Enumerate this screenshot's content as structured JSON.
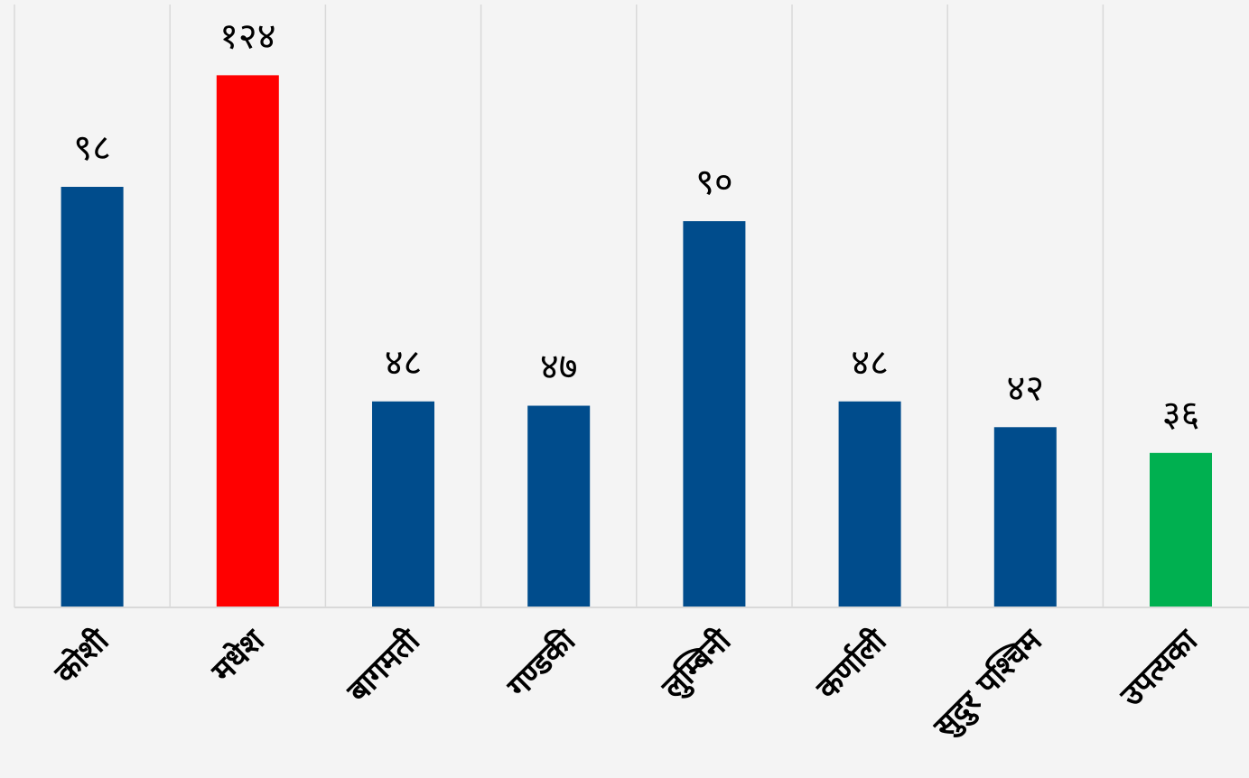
{
  "chart_data": {
    "type": "bar",
    "categories": [
      "कोशी",
      "मधेश",
      "बागमती",
      "गण्डकी",
      "लुम्बिनी",
      "कर्णाली",
      "सुदुर पश्चिम",
      "उपत्यका"
    ],
    "values": [
      98,
      124,
      48,
      47,
      90,
      48,
      42,
      36
    ],
    "value_labels": [
      "९८",
      "१२४",
      "४८",
      "४७",
      "९०",
      "४८",
      "४२",
      "३६"
    ],
    "bar_colors": [
      "#004c8c",
      "#ff0000",
      "#004c8c",
      "#004c8c",
      "#004c8c",
      "#004c8c",
      "#004c8c",
      "#00b050"
    ],
    "title": "",
    "xlabel": "",
    "ylabel": "",
    "ylim": [
      0,
      140
    ],
    "grid": true,
    "legend": "none",
    "background_color": "#f4f4f4",
    "grid_color": "#d9d9d9"
  }
}
